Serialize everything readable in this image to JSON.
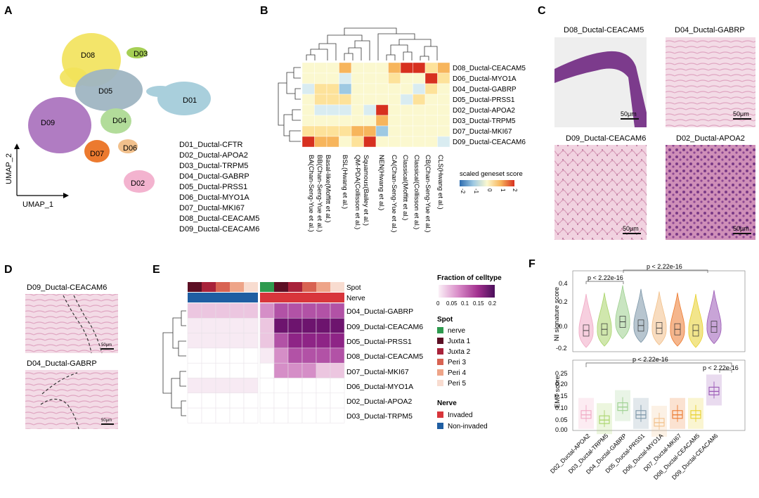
{
  "panel_letters": [
    "A",
    "B",
    "C",
    "D",
    "E",
    "F"
  ],
  "A": {
    "cluster_labels": [
      "D08",
      "D03",
      "D05",
      "D01",
      "D09",
      "D04",
      "D07",
      "D06",
      "D02"
    ],
    "legend": [
      "D01_Ductal-CFTR",
      "D02_Ductal-APOA2",
      "D03_Ductal-TRPM5",
      "D04_Ductal-GABRP",
      "D05_Ductal-PRSS1",
      "D06_Ductal-MYO1A",
      "D07_Ductal-MKI67",
      "D08_Ductal-CEACAM5",
      "D09_Ductal-CEACAM6"
    ],
    "xlabel": "UMAP_1",
    "ylabel": "UMAP_2"
  },
  "B": {
    "rows": [
      "D08_Ductal-CEACAM5",
      "D06_Ductal-MYO1A",
      "D04_Ductal-GABRP",
      "D05_Ductal-PRSS1",
      "D02_Ductal-APOA2",
      "D03_Ductal-TRPM5",
      "D07_Ductal-MKI67",
      "D09_Ductal-CEACAM6"
    ],
    "cols": [
      "BA(Chan-Seng-Yue et al.)",
      "BB(Chan-Seng-Yue et al.)",
      "Basal-like(Moffitt et al.)",
      "BSL(Hwang et al.)",
      "QM-PDA(Collisson et al.)",
      "Squamous(Bailey et al.)",
      "NEN(Hwang et al.)",
      "CA(Chan-Seng-Yue et al.)",
      "Classical(Moffitt et al.)",
      "Classical(Collisson et al.)",
      "CB(Chan-Seng-Yue et al.)",
      "CLS(Hwang et al.)"
    ],
    "legend_title": "scaled geneset score",
    "legend_ticks": [
      "-2",
      "-1",
      "0",
      "1",
      "2"
    ]
  },
  "C": {
    "titles": [
      "D08_Ductal-CEACAM5",
      "D04_Ductal-GABRP",
      "D09_Ductal-CEACAM6",
      "D02_Ductal-APOA2"
    ],
    "scale": "50μm"
  },
  "D": {
    "titles": [
      "D09_Ductal-CEACAM6",
      "D04_Ductal-GABRP"
    ],
    "scale": "50μm"
  },
  "E": {
    "rows": [
      "D04_Ductal-GABRP",
      "D09_Ductal-CEACAM6",
      "D05_Ductal-PRSS1",
      "D08_Ductal-CEACAM5",
      "D07_Ductal-MKI67",
      "D06_Ductal-MYO1A",
      "D02_Ductal-APOA2",
      "D03_Ductal-TRPM5"
    ],
    "annot_labels": [
      "Spot",
      "Nerve"
    ],
    "fraction_title": "Fraction of celltype",
    "fraction_ticks": [
      "0",
      "0.05",
      "0.1",
      "0.15",
      "0.2"
    ],
    "spot_title": "Spot",
    "spot_legend": [
      {
        "label": "nerve",
        "color": "#2e9a4e"
      },
      {
        "label": "Juxta 1",
        "color": "#5c0f24"
      },
      {
        "label": "Juxta 2",
        "color": "#a8223a"
      },
      {
        "label": "Peri 3",
        "color": "#d86352"
      },
      {
        "label": "Peri 4",
        "color": "#eea488"
      },
      {
        "label": "Peri 5",
        "color": "#f8dcd0"
      }
    ],
    "nerve_title": "Nerve",
    "nerve_legend": [
      {
        "label": "Invaded",
        "color": "#d8353b"
      },
      {
        "label": "Non-invaded",
        "color": "#1f5ea2"
      }
    ]
  },
  "F": {
    "categories": [
      "D02_Ductal-APOA2",
      "D03_Ductal-TRPM5",
      "D04_Ductal-GABRP",
      "D05_Ductal-PRSS1",
      "D06_Ductal-MYO1A",
      "D07_Ductal-MKI67",
      "D08_Ductal-CEACAM5",
      "D09_Ductal-CEACAM6"
    ],
    "colors": [
      "#f0a8c4",
      "#a9d46a",
      "#9ccf8e",
      "#7c96a8",
      "#f2c08a",
      "#ec7a2f",
      "#e8d02c",
      "#9b59b6"
    ],
    "top": {
      "ylabel": "NI signature score",
      "yticks": [
        "0.4",
        "0.2",
        "0.0",
        "-0.2"
      ],
      "pvalues": [
        "p < 2.22e-16",
        "p < 2.22e-16"
      ],
      "medians": [
        -0.03,
        -0.02,
        0.04,
        0.01,
        -0.01,
        -0.02,
        -0.03,
        0.0
      ]
    },
    "bottom": {
      "ylabel": "EMT score",
      "yticks": [
        "0.25",
        "0.20",
        "0.15",
        "0.10",
        "0.05",
        "0.00"
      ],
      "pvalues": [
        "p < 2.22e-16",
        "p < 2.22e-16"
      ],
      "medians": [
        0.06,
        0.04,
        0.09,
        0.06,
        0.03,
        0.06,
        0.06,
        0.15
      ]
    }
  }
}
